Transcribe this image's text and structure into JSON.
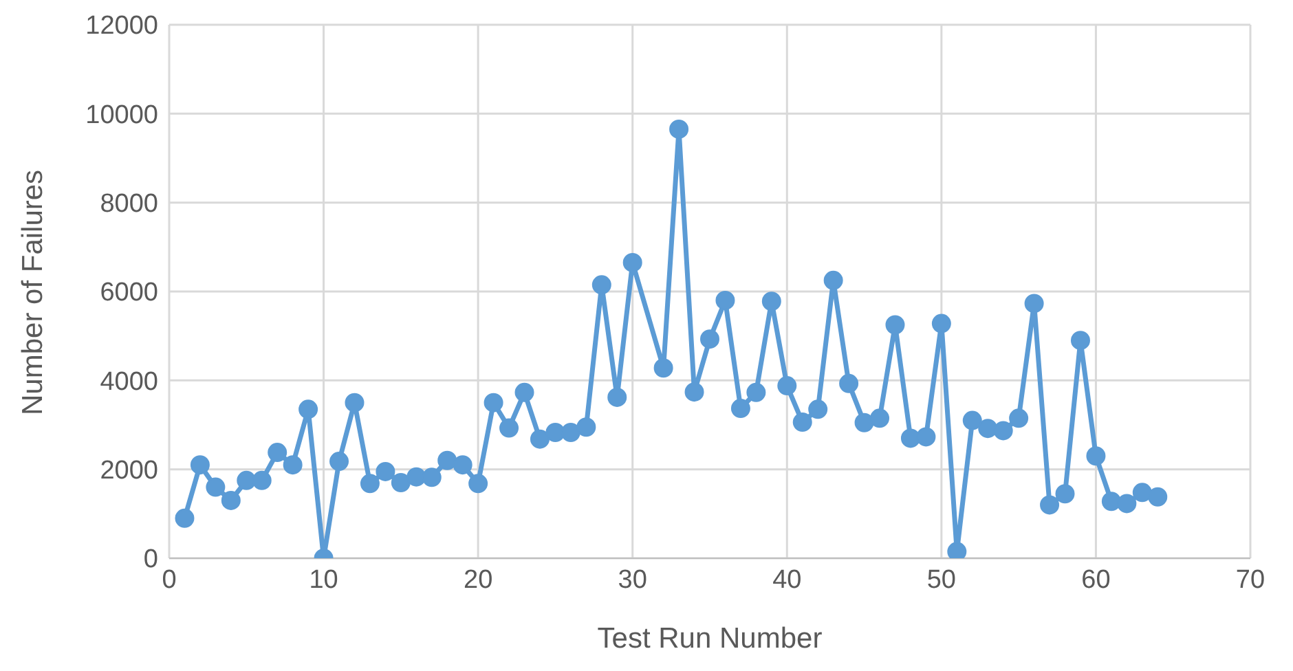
{
  "chart_data": {
    "type": "line",
    "xlabel": "Test Run Number",
    "ylabel": "Number of Failures",
    "x": [
      1,
      2,
      3,
      4,
      5,
      6,
      7,
      8,
      9,
      10,
      11,
      12,
      13,
      14,
      15,
      16,
      17,
      18,
      19,
      20,
      21,
      22,
      23,
      24,
      25,
      26,
      27,
      28,
      29,
      30,
      32,
      33,
      34,
      35,
      36,
      37,
      38,
      39,
      40,
      41,
      42,
      43,
      44,
      45,
      46,
      47,
      48,
      49,
      50,
      51,
      52,
      53,
      54,
      55,
      56,
      57,
      58,
      59,
      60,
      61,
      62,
      63,
      64
    ],
    "series": [
      {
        "color": "#5b9bd5",
        "values": [
          900,
          2100,
          1600,
          1300,
          1750,
          1750,
          2380,
          2100,
          3350,
          0,
          2180,
          3500,
          1680,
          1950,
          1700,
          1830,
          1820,
          2200,
          2100,
          1680,
          3500,
          2930,
          3730,
          2680,
          2830,
          2830,
          2950,
          6150,
          3620,
          6650,
          4280,
          9650,
          3740,
          4930,
          5800,
          3370,
          3730,
          5780,
          3880,
          3060,
          3350,
          6250,
          3930,
          3050,
          3150,
          5250,
          2700,
          2730,
          5280,
          150,
          3100,
          2920,
          2870,
          3150,
          5730,
          1200,
          1450,
          4900,
          2300,
          1280,
          1230,
          1480,
          1380
        ]
      }
    ],
    "xlim": [
      0,
      70
    ],
    "xticks": [
      0,
      10,
      20,
      30,
      40,
      50,
      60,
      70
    ],
    "ylim": [
      0,
      12000
    ],
    "yticks": [
      0,
      2000,
      4000,
      6000,
      8000,
      10000,
      12000
    ],
    "grid": true,
    "marker": "circle",
    "line_style": "solid",
    "legend": false
  }
}
